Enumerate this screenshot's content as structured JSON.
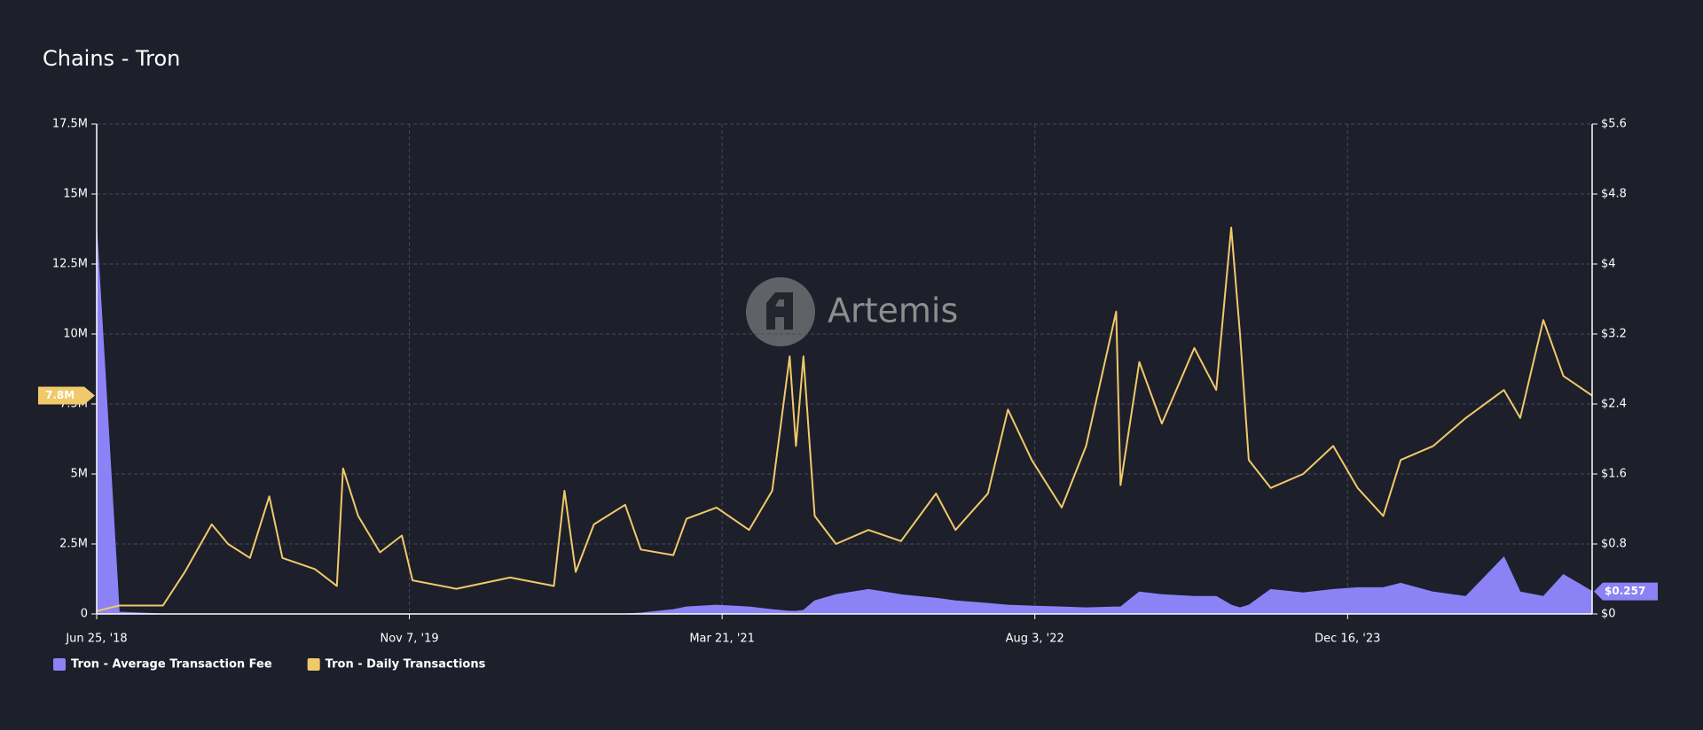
{
  "chart_data": {
    "type": "line",
    "title": "Chains - Tron",
    "watermark": "Artemis",
    "x": [
      "2018-06-25",
      "2018-07-31",
      "2018-10-09",
      "2018-11-13",
      "2018-12-26",
      "2019-01-21",
      "2019-02-25",
      "2019-03-28",
      "2019-04-18",
      "2019-06-09",
      "2019-07-14",
      "2019-07-24",
      "2019-08-17",
      "2019-09-21",
      "2019-10-26",
      "2019-11-12",
      "2020-01-21",
      "2020-04-16",
      "2020-06-25",
      "2020-07-12",
      "2020-07-30",
      "2020-08-28",
      "2020-10-17",
      "2020-11-11",
      "2021-01-02",
      "2021-01-23",
      "2021-03-12",
      "2021-05-03",
      "2021-06-09",
      "2021-07-07",
      "2021-07-17",
      "2021-07-29",
      "2021-08-16",
      "2021-09-19",
      "2021-11-10",
      "2022-01-01",
      "2022-02-26",
      "2022-03-29",
      "2022-05-20",
      "2022-06-21",
      "2022-07-29",
      "2022-09-15",
      "2022-10-24",
      "2022-12-11",
      "2022-12-18",
      "2023-01-17",
      "2023-02-22",
      "2023-04-15",
      "2023-05-20",
      "2023-06-13",
      "2023-06-27",
      "2023-07-11",
      "2023-08-15",
      "2023-10-06",
      "2023-11-23",
      "2024-01-01",
      "2024-02-11",
      "2024-03-10",
      "2024-05-01",
      "2024-06-22",
      "2024-08-22",
      "2024-09-17",
      "2024-10-24",
      "2024-11-25",
      "2025-01-10"
    ],
    "series": [
      {
        "name": "Tron - Average Transaction Fee",
        "color": "#8b83f5",
        "axis": "y2",
        "kind": "area",
        "end_label": "$0.257",
        "values": [
          4.4,
          0.02,
          0,
          0,
          0,
          0,
          0,
          0,
          0,
          0,
          0,
          0,
          0,
          0,
          0,
          0,
          0,
          0,
          0,
          0,
          0,
          0,
          0,
          0.01,
          0.05,
          0.08,
          0.1,
          0.08,
          0.05,
          0.03,
          0.03,
          0.04,
          0.15,
          0.22,
          0.28,
          0.22,
          0.18,
          0.15,
          0.12,
          0.1,
          0.09,
          0.08,
          0.07,
          0.08,
          0.08,
          0.25,
          0.22,
          0.2,
          0.2,
          0.1,
          0.07,
          0.1,
          0.28,
          0.24,
          0.28,
          0.3,
          0.3,
          0.35,
          0.25,
          0.2,
          0.65,
          0.25,
          0.2,
          0.45,
          0.257
        ]
      },
      {
        "name": "Tron - Daily Transactions",
        "color": "#f0c96a",
        "axis": "y",
        "kind": "line",
        "end_label": "7.8M",
        "values": [
          100000,
          300000,
          300000,
          1500000,
          3200000,
          2500000,
          2000000,
          4200000,
          2000000,
          1600000,
          1000000,
          5200000,
          3500000,
          2200000,
          2800000,
          1200000,
          900000,
          1300000,
          1000000,
          4400000,
          1500000,
          3200000,
          3900000,
          2300000,
          2100000,
          3400000,
          3800000,
          3000000,
          4400000,
          9200000,
          6000000,
          9200000,
          3500000,
          2500000,
          3000000,
          2600000,
          4300000,
          3000000,
          4300000,
          7300000,
          5500000,
          3800000,
          6000000,
          10800000,
          4600000,
          9000000,
          6800000,
          9500000,
          8000000,
          13800000,
          10000000,
          5500000,
          4500000,
          5000000,
          6000000,
          4500000,
          3500000,
          5500000,
          6000000,
          7000000,
          8000000,
          7000000,
          10500000,
          8500000,
          7800000
        ]
      }
    ],
    "xlim": [
      "2018-06-25",
      "2025-01-10"
    ],
    "xticks": [
      {
        "value": "2018-06-25",
        "label": "Jun 25, '18"
      },
      {
        "value": "2019-11-07",
        "label": "Nov 7, '19"
      },
      {
        "value": "2021-03-21",
        "label": "Mar 21, '21"
      },
      {
        "value": "2022-08-03",
        "label": "Aug 3, '22"
      },
      {
        "value": "2023-12-16",
        "label": "Dec 16, '23"
      }
    ],
    "ylim": [
      0,
      17500000
    ],
    "yticks": [
      0,
      {
        "value": 2500000,
        "label": "2.5M"
      },
      {
        "value": 5000000,
        "label": "5M"
      },
      {
        "value": 7500000,
        "label": "7.5M"
      },
      {
        "value": 10000000,
        "label": "10M"
      },
      {
        "value": 12500000,
        "label": "12.5M"
      },
      {
        "value": 15000000,
        "label": "15M"
      },
      {
        "value": 17500000,
        "label": "17.5M"
      }
    ],
    "y2lim": [
      0,
      5.6
    ],
    "y2ticks": [
      {
        "value": 0,
        "label": "$0"
      },
      {
        "value": 0.8,
        "label": "$0.8"
      },
      {
        "value": 1.6,
        "label": "$1.6"
      },
      {
        "value": 2.4,
        "label": "$2.4"
      },
      {
        "value": 3.2,
        "label": "$3.2"
      },
      {
        "value": 4,
        "label": "$4"
      },
      {
        "value": 4.8,
        "label": "$4.8"
      },
      {
        "value": 5.6,
        "label": "$5.6"
      }
    ],
    "grid": true,
    "legend": "bottom-left"
  }
}
